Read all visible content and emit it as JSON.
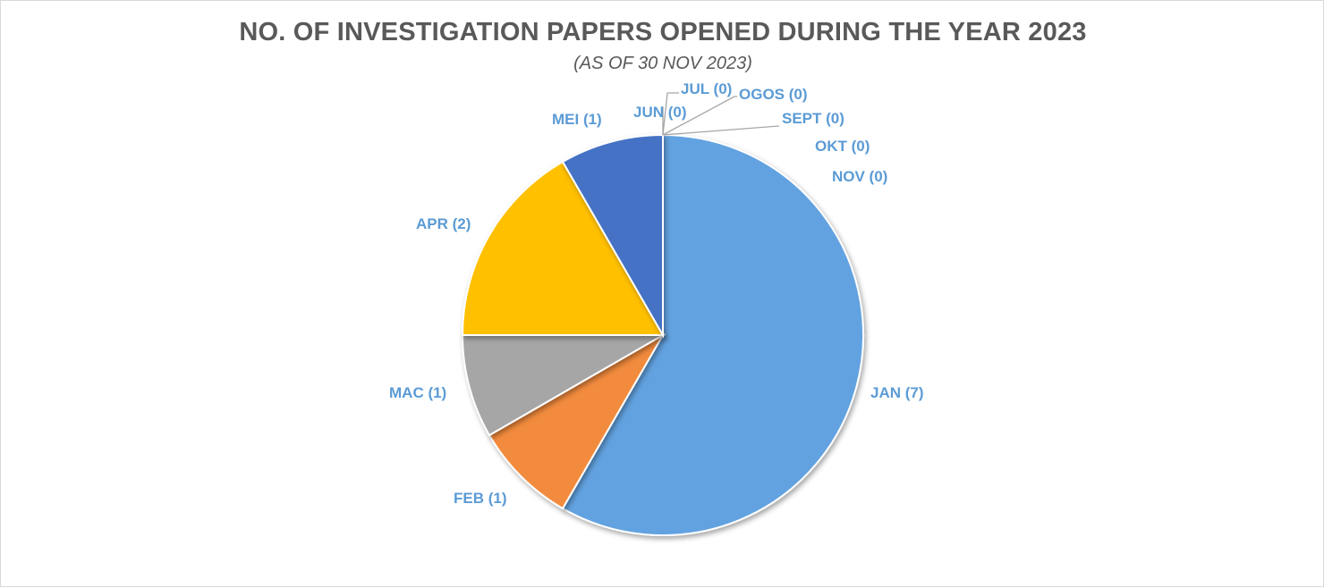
{
  "chart_data": {
    "type": "pie",
    "title": "NO. OF INVESTIGATION PAPERS OPENED DURING THE YEAR 2023",
    "subtitle": "(AS OF 30 NOV 2023)",
    "slices": [
      {
        "category": "JAN",
        "value": 7,
        "label": "JAN (7)",
        "color": "#62a2e0"
      },
      {
        "category": "FEB",
        "value": 1,
        "label": "FEB (1)",
        "color": "#f28b3c"
      },
      {
        "category": "MAC",
        "value": 1,
        "label": "MAC (1)",
        "color": "#a6a6a6"
      },
      {
        "category": "APR",
        "value": 2,
        "label": "APR (2)",
        "color": "#ffc000"
      },
      {
        "category": "MEI",
        "value": 1,
        "label": "MEI (1)",
        "color": "#4472c4"
      },
      {
        "category": "JUN",
        "value": 0,
        "label": "JUN (0)",
        "color": "#264478"
      },
      {
        "category": "JUL",
        "value": 0,
        "label": "JUL (0)",
        "color": "#9e480e"
      },
      {
        "category": "OGOS",
        "value": 0,
        "label": "OGOS (0)",
        "color": "#636363"
      },
      {
        "category": "SEPT",
        "value": 0,
        "label": "SEPT (0)",
        "color": "#997300"
      },
      {
        "category": "OKT",
        "value": 0,
        "label": "OKT (0)",
        "color": "#255e91"
      },
      {
        "category": "NOV",
        "value": 0,
        "label": "NOV (0)",
        "color": "#43682b"
      }
    ],
    "label_color": "#5b9bd5",
    "legend": "none"
  }
}
